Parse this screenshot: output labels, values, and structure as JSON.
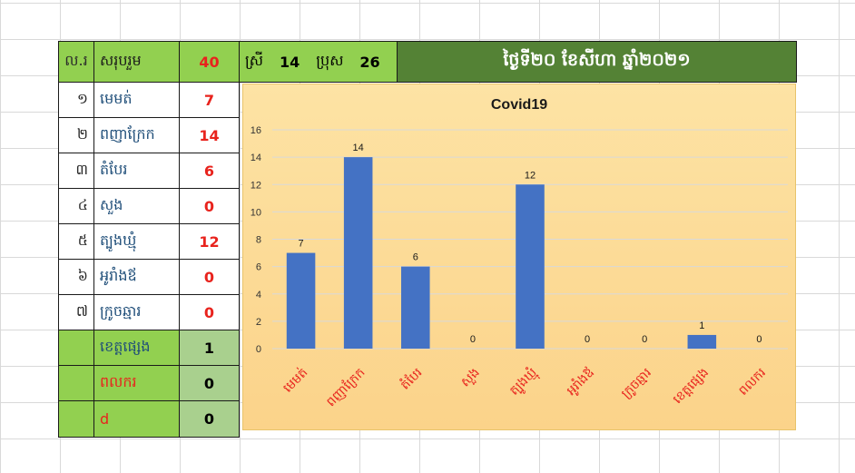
{
  "header": {
    "col_index": "ល.រ",
    "col_label": "សរុបរួម",
    "total": "40",
    "female_label": "ស្រី",
    "female_count": "14",
    "male_label": "ប្រុស",
    "male_count": "26",
    "date": "ថ្ងៃទី២០ ខែសីហា ឆ្នាំ២០២១"
  },
  "rows": [
    {
      "index": "១",
      "name": "មេមត់",
      "value": "7"
    },
    {
      "index": "២",
      "name": "ពញាក្រែក",
      "value": "14"
    },
    {
      "index": "៣",
      "name": "តំបែរ",
      "value": "6"
    },
    {
      "index": "៤",
      "name": "សួង",
      "value": "0"
    },
    {
      "index": "៥",
      "name": "ត្បូងឃ្មុំ",
      "value": "12"
    },
    {
      "index": "៦",
      "name": "អូរាំងឪ",
      "value": "0"
    },
    {
      "index": "៧",
      "name": "ក្រូចឆ្មារ",
      "value": "0"
    }
  ],
  "extra_rows": [
    {
      "name": "ខេត្តផ្សេង",
      "value": "1"
    },
    {
      "name": "ពលករ",
      "value": "0"
    },
    {
      "name": "d",
      "value": "0"
    }
  ],
  "colors": {
    "bar": "#4472c4",
    "header_green": "#92d050",
    "date_green": "#548235",
    "chart_bg": "#fdd998",
    "red_value": "#e8231d"
  },
  "chart_data": {
    "type": "bar",
    "title": "Covid19",
    "categories": [
      "មេមត់",
      "ពញាក្រែក",
      "តំបែរ",
      "សួង",
      "ត្បូងឃ្មុំ",
      "អូរាំងឪ",
      "ក្រូចឆ្មារ",
      "ខេត្តផ្សេង",
      "ពលករ"
    ],
    "values": [
      7,
      14,
      6,
      0,
      12,
      0,
      0,
      1,
      0
    ],
    "ylim": [
      0,
      16
    ],
    "yticks": [
      0,
      2,
      4,
      6,
      8,
      10,
      12,
      14,
      16
    ],
    "grid": true,
    "data_labels": true,
    "xlabel": "",
    "ylabel": ""
  }
}
